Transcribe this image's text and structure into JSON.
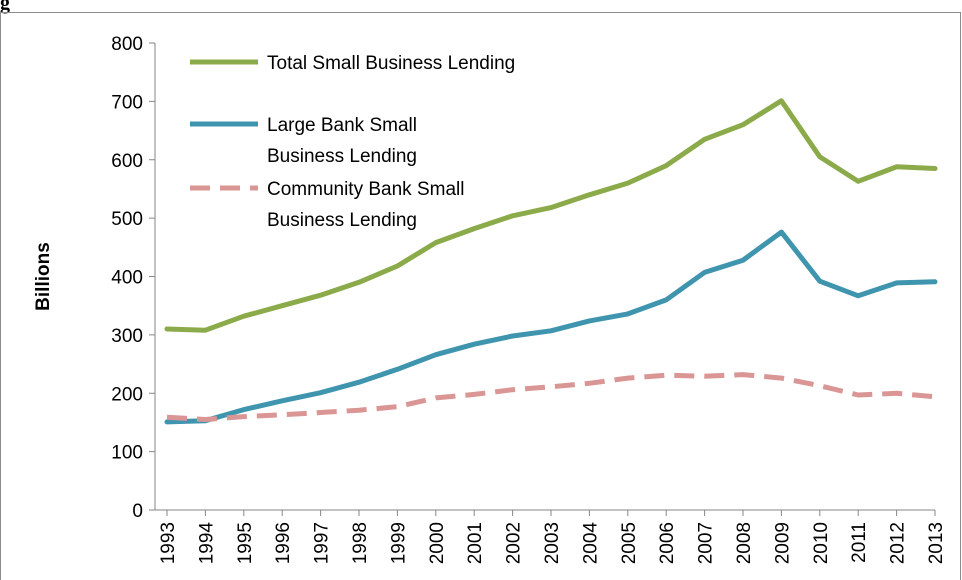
{
  "figure": {
    "label": "g"
  },
  "chart_data": {
    "type": "line",
    "title": "",
    "xlabel": "",
    "ylabel": "Billions",
    "ylim": [
      0,
      800
    ],
    "yticks": [
      0,
      100,
      200,
      300,
      400,
      500,
      600,
      700,
      800
    ],
    "x": [
      "1993",
      "1994",
      "1995",
      "1996",
      "1997",
      "1998",
      "1999",
      "2000",
      "2001",
      "2002",
      "2003",
      "2004",
      "2005",
      "2006",
      "2007",
      "2008",
      "2009",
      "2010",
      "2011",
      "2012",
      "2013"
    ],
    "legend_position": "top-left",
    "grid": false,
    "series": [
      {
        "name": "Total Small Business Lending",
        "color": "#8BAA4A",
        "style": "solid",
        "values": [
          310,
          308,
          332,
          350,
          368,
          390,
          418,
          458,
          482,
          504,
          518,
          540,
          560,
          590,
          635,
          660,
          701,
          605,
          563,
          588,
          585
        ]
      },
      {
        "name": "Large Bank Small Business Lending",
        "color": "#3F95AE",
        "style": "solid",
        "values": [
          151,
          153,
          172,
          187,
          201,
          219,
          241,
          266,
          284,
          298,
          307,
          324,
          336,
          360,
          407,
          428,
          476,
          392,
          367,
          389,
          391
        ]
      },
      {
        "name": "Community Bank Small Business Lending",
        "color": "#D99694",
        "style": "dashed",
        "values": [
          159,
          155,
          160,
          163,
          167,
          171,
          177,
          192,
          198,
          206,
          211,
          217,
          226,
          231,
          229,
          232,
          226,
          213,
          197,
          200,
          194
        ]
      }
    ]
  }
}
